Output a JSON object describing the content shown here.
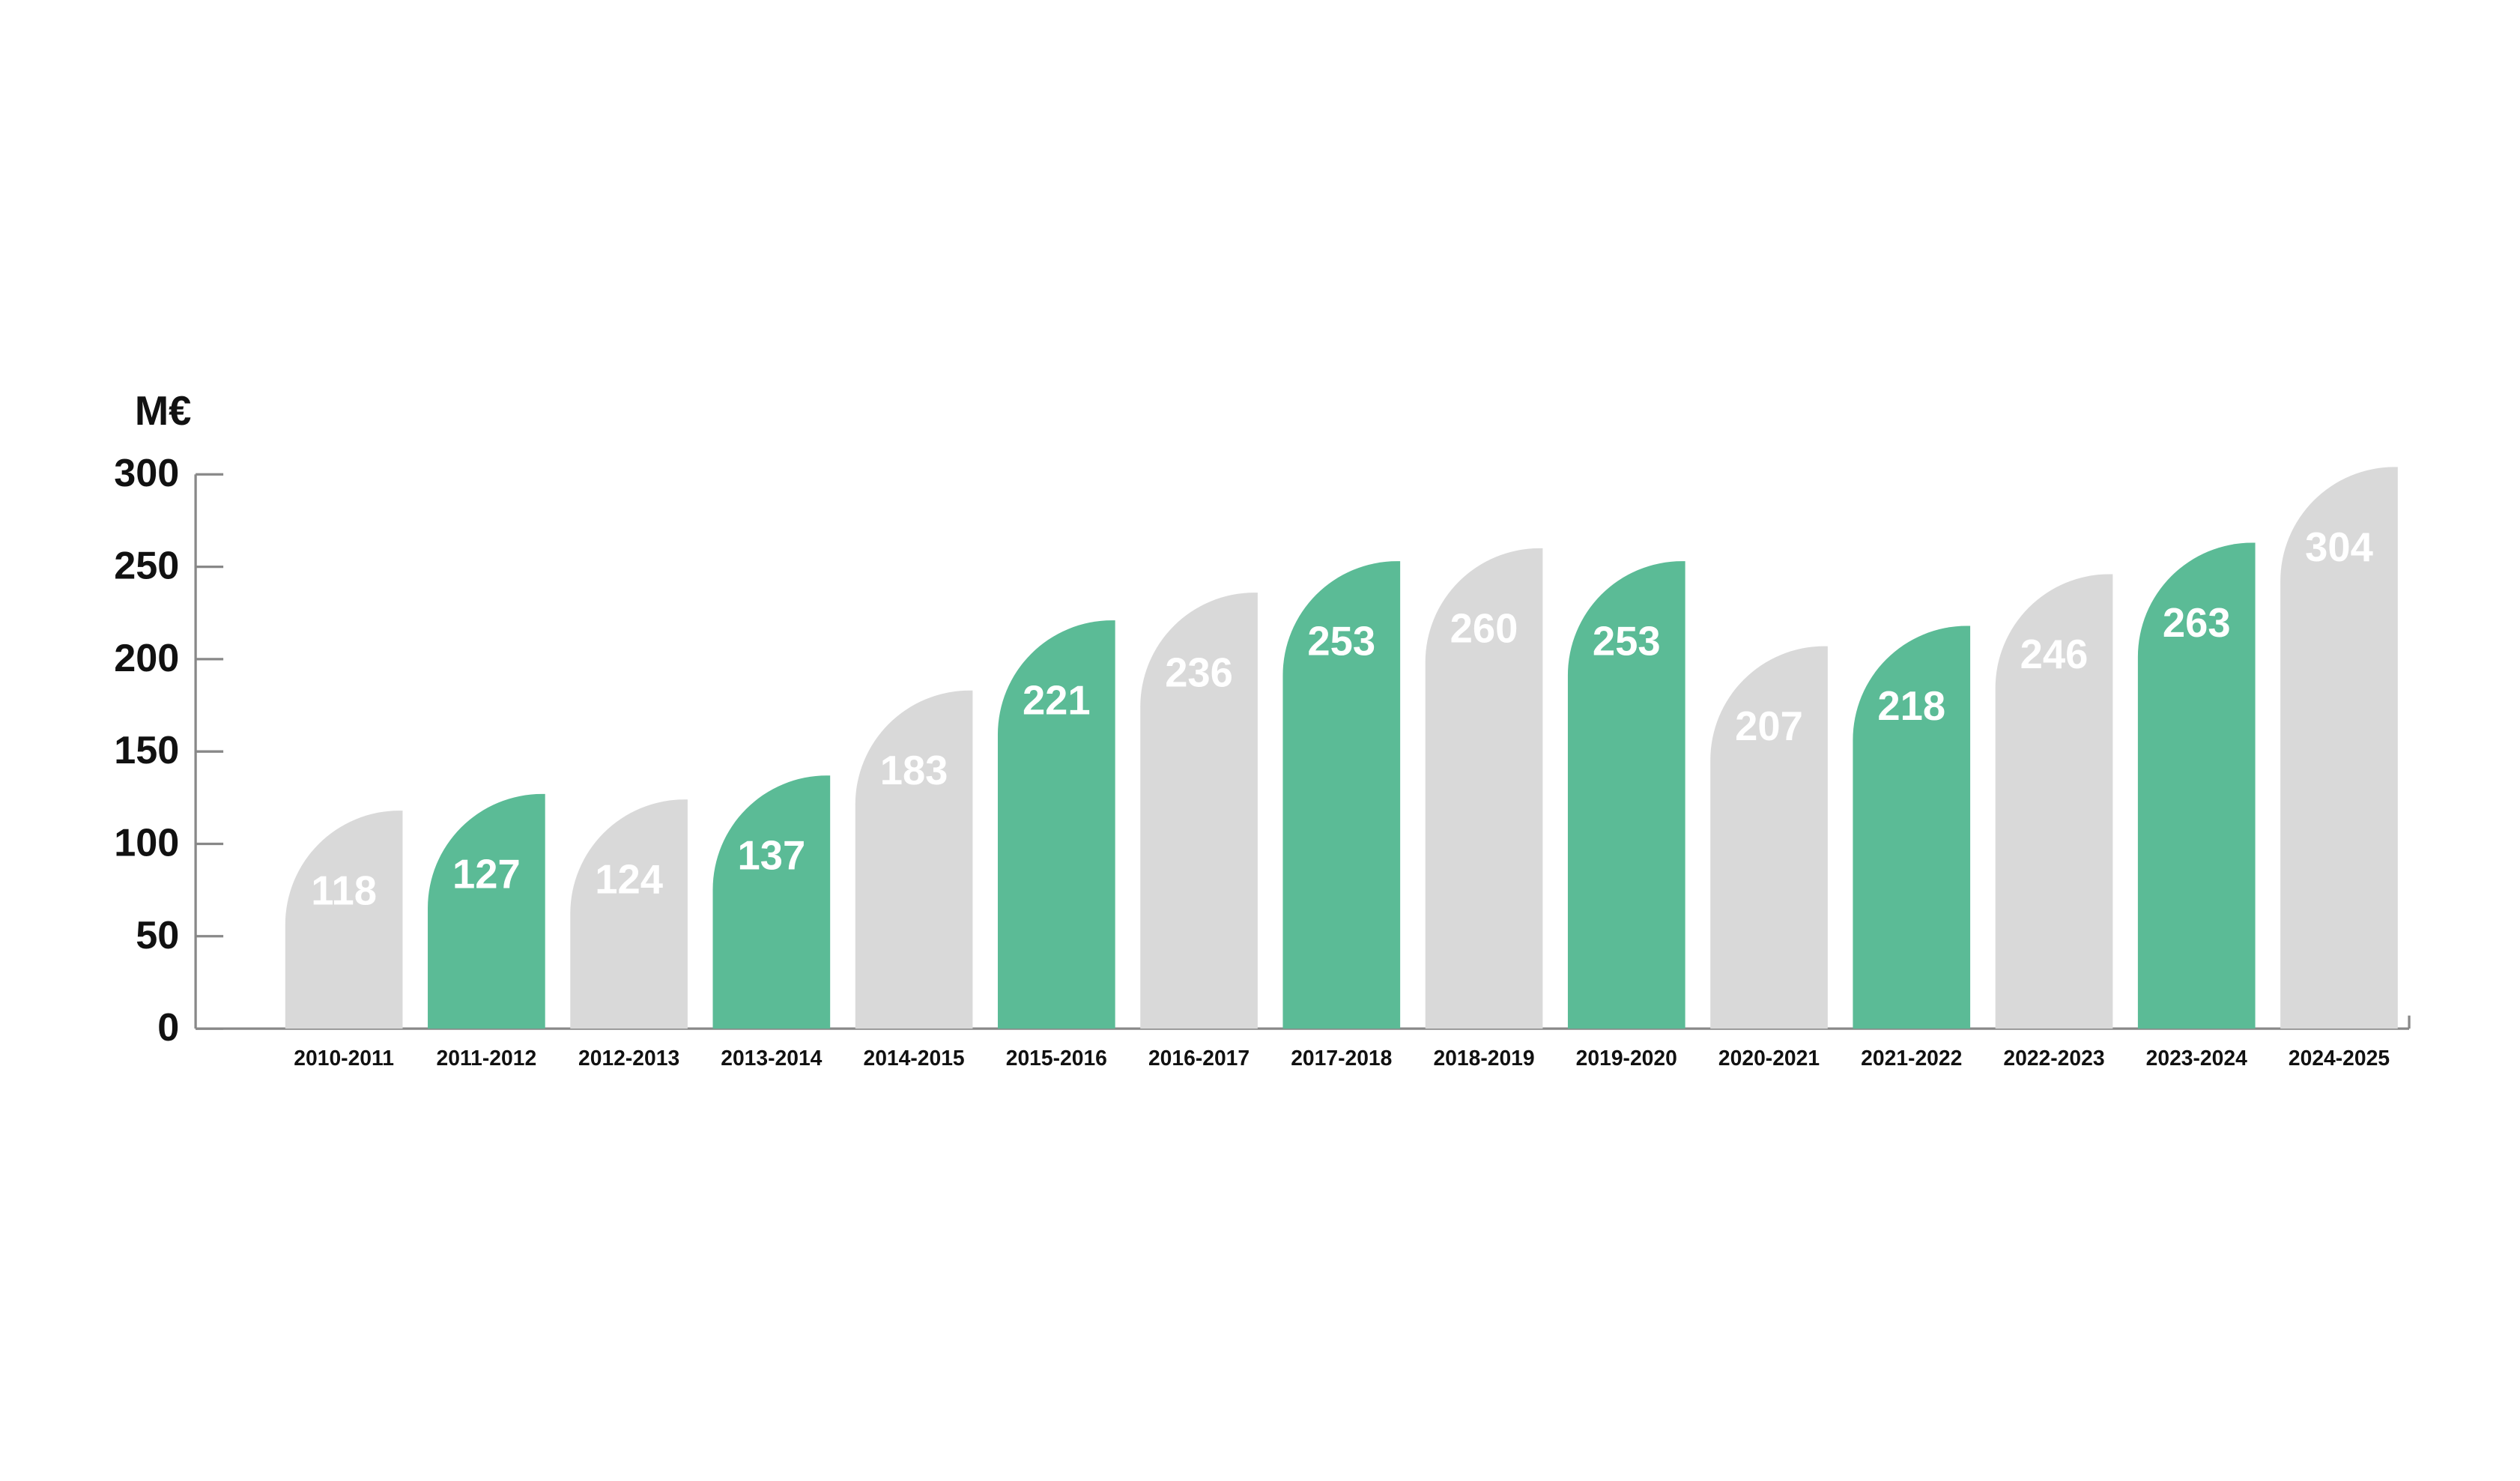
{
  "chart_data": {
    "type": "bar",
    "y_label": "M€",
    "categories": [
      "2010-2011",
      "2011-2012",
      "2012-2013",
      "2013-2014",
      "2014-2015",
      "2015-2016",
      "2016-2017",
      "2017-2018",
      "2018-2019",
      "2019-2020",
      "2020-2021",
      "2021-2022",
      "2022-2023",
      "2023-2024",
      "2024-2025"
    ],
    "values": [
      118,
      127,
      124,
      137,
      183,
      221,
      236,
      253,
      260,
      253,
      207,
      218,
      246,
      263,
      304
    ],
    "colors": [
      "#d9d9d9",
      "#5bbb96",
      "#d9d9d9",
      "#5bbb96",
      "#d9d9d9",
      "#5bbb96",
      "#d9d9d9",
      "#5bbb96",
      "#d9d9d9",
      "#5bbb96",
      "#d9d9d9",
      "#5bbb96",
      "#d9d9d9",
      "#5bbb96",
      "#d9d9d9"
    ],
    "ylim": [
      0,
      300
    ],
    "yticks": [
      0,
      50,
      100,
      150,
      200,
      250,
      300
    ]
  }
}
